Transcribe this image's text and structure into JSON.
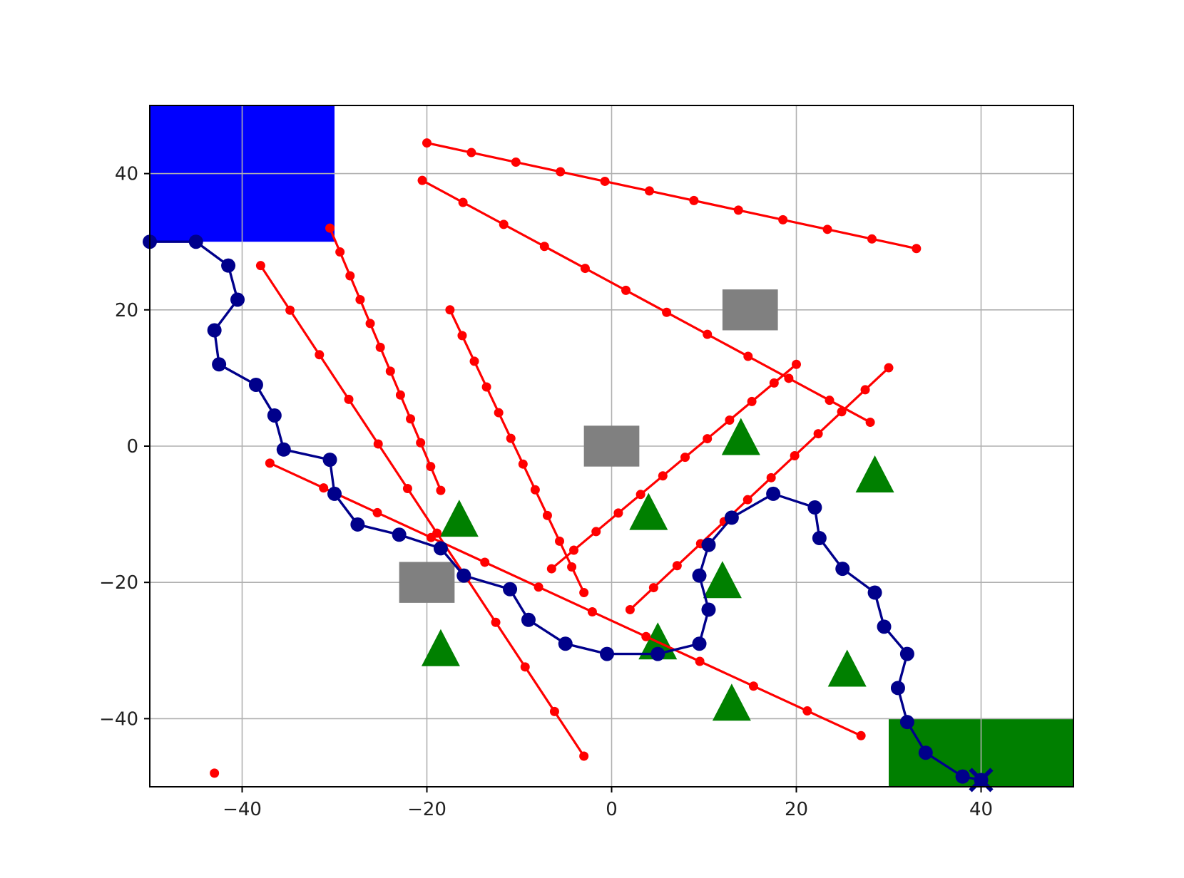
{
  "chart_data": {
    "type": "scatter",
    "title": "",
    "xlabel": "",
    "ylabel": "",
    "xlim": [
      -50,
      50
    ],
    "ylim": [
      -50,
      50
    ],
    "grid": true,
    "xticks": [
      -40,
      -20,
      0,
      20,
      40
    ],
    "yticks": [
      -40,
      -20,
      0,
      20,
      40
    ],
    "xtick_labels": [
      "−40",
      "−20",
      "0",
      "20",
      "40"
    ],
    "ytick_labels": [
      "−40",
      "−20",
      "0",
      "20",
      "40"
    ],
    "regions": [
      {
        "x0": -50,
        "x1": -30,
        "y0": 30,
        "y1": 50,
        "color": "#0000ff"
      },
      {
        "x0": 30,
        "x1": 50,
        "y0": -50,
        "y1": -40,
        "color": "#007f00"
      }
    ],
    "squares": {
      "color": "#808080",
      "centers": [
        [
          15,
          20
        ],
        [
          0,
          0
        ],
        [
          -20,
          -20
        ]
      ],
      "size": 6
    },
    "triangles": {
      "color": "#008000",
      "points": [
        [
          14,
          1
        ],
        [
          28.5,
          -4.5
        ],
        [
          -16.5,
          -11
        ],
        [
          4,
          -10
        ],
        [
          12,
          -20
        ],
        [
          5,
          -29
        ],
        [
          -18.5,
          -30
        ],
        [
          25.5,
          -33
        ],
        [
          13,
          -38
        ]
      ]
    },
    "red_segments": {
      "color": "#ff0000",
      "lines": [
        [
          [
            -20,
            44.5
          ],
          [
            33,
            29
          ]
        ],
        [
          [
            -20.5,
            39
          ],
          [
            28,
            3.5
          ]
        ],
        [
          [
            -30.5,
            32
          ],
          [
            -18.5,
            -6.5
          ]
        ],
        [
          [
            -38,
            26.5
          ],
          [
            -3,
            -45.5
          ]
        ],
        [
          [
            -17.5,
            20
          ],
          [
            -3,
            -21.5
          ]
        ],
        [
          [
            -37,
            -2.5
          ],
          [
            27,
            -42.5
          ]
        ],
        [
          [
            -6.5,
            -18
          ],
          [
            20,
            12
          ]
        ],
        [
          [
            2,
            -24
          ],
          [
            30,
            11.5
          ]
        ]
      ],
      "isolated_points": [
        [
          -43,
          -48
        ]
      ]
    },
    "path": {
      "color": "#00008b",
      "points": [
        [
          -50,
          30
        ],
        [
          -45,
          30
        ],
        [
          -41.5,
          26.5
        ],
        [
          -40.5,
          21.5
        ],
        [
          -43,
          17
        ],
        [
          -42.5,
          12
        ],
        [
          -38.5,
          9
        ],
        [
          -36.5,
          4.5
        ],
        [
          -35.5,
          -0.5
        ],
        [
          -30.5,
          -2
        ],
        [
          -30,
          -7
        ],
        [
          -27.5,
          -11.5
        ],
        [
          -23,
          -13
        ],
        [
          -18.5,
          -15
        ],
        [
          -16,
          -19
        ],
        [
          -11,
          -21
        ],
        [
          -9,
          -25.5
        ],
        [
          -5,
          -29
        ],
        [
          -0.5,
          -30.5
        ],
        [
          5,
          -30.5
        ],
        [
          9.5,
          -29
        ],
        [
          10.5,
          -24
        ],
        [
          9.5,
          -19
        ],
        [
          10.5,
          -14.5
        ],
        [
          13,
          -10.5
        ],
        [
          17.5,
          -7
        ],
        [
          22,
          -9
        ],
        [
          22.5,
          -13.5
        ],
        [
          25,
          -18
        ],
        [
          28.5,
          -21.5
        ],
        [
          29.5,
          -26.5
        ],
        [
          32,
          -30.5
        ],
        [
          31,
          -35.5
        ],
        [
          32,
          -40.5
        ],
        [
          34,
          -45
        ],
        [
          38,
          -48.5
        ],
        [
          40,
          -49
        ]
      ],
      "end_marker": "x",
      "end": [
        40,
        -49
      ]
    }
  }
}
